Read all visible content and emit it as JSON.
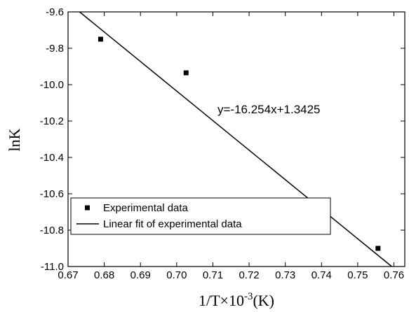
{
  "chart_data": {
    "type": "scatter",
    "x_label": [
      "1/T×10",
      "-3",
      "(K)"
    ],
    "y_label": "lnK",
    "annotation": "y=-16.254x+1.3425",
    "x": [
      0.679,
      0.7026,
      0.7331,
      0.7556
    ],
    "series": [
      {
        "name": "Experimental data",
        "color": "#000000",
        "values": [
          -9.75,
          -9.935,
          -10.64,
          -10.9
        ]
      },
      {
        "name": "Linear fit of experimental data",
        "color": "#000000",
        "kind": "line",
        "x": [
          0.6732,
          0.7594
        ],
        "values": [
          -9.6,
          -11.0
        ]
      }
    ],
    "xlim": [
      0.67,
      0.763
    ],
    "ylim": [
      -11.0,
      -9.6
    ],
    "xticks": [
      0.67,
      0.68,
      0.69,
      {
        "value": 0.7,
        "label": "0.70"
      },
      0.71,
      0.72,
      0.73,
      0.74,
      0.75,
      0.76
    ],
    "yticks": [
      {
        "value": -11.0,
        "label": "-11.0"
      },
      -10.8,
      -10.6,
      -10.4,
      -10.2,
      {
        "value": -10.0,
        "label": "-10.0"
      },
      -9.8,
      -9.6
    ],
    "legend": "lower left"
  }
}
